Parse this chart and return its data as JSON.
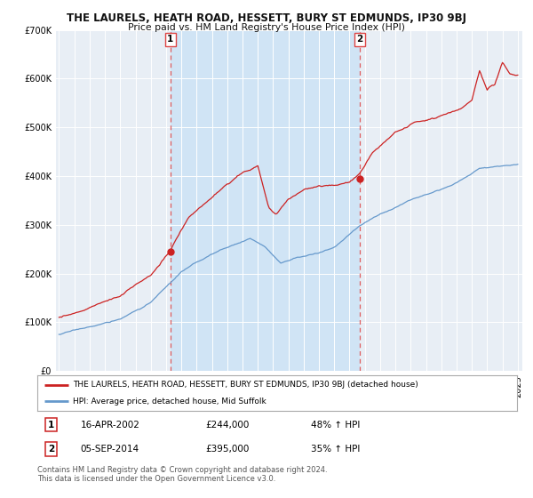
{
  "title": "THE LAURELS, HEATH ROAD, HESSETT, BURY ST EDMUNDS, IP30 9BJ",
  "subtitle": "Price paid vs. HM Land Registry's House Price Index (HPI)",
  "hpi_color": "#6699cc",
  "price_color": "#cc2222",
  "vline_color": "#dd4444",
  "legend_line1": "THE LAURELS, HEATH ROAD, HESSETT, BURY ST EDMUNDS, IP30 9BJ (detached house)",
  "legend_line2": "HPI: Average price, detached house, Mid Suffolk",
  "footer": "Contains HM Land Registry data © Crown copyright and database right 2024.\nThis data is licensed under the Open Government Licence v3.0.",
  "ylim": [
    0,
    700000
  ],
  "yticks": [
    0,
    100000,
    200000,
    300000,
    400000,
    500000,
    600000,
    700000
  ],
  "bg_color": "#ffffff",
  "plot_bg_color": "#e8eef5",
  "shade_color": "#d0e4f5",
  "grid_color": "#ffffff",
  "xstart": 1995,
  "xend": 2025,
  "transaction1_year": 2002.29,
  "transaction1_price": 244000,
  "transaction2_year": 2014.67,
  "transaction2_price": 395000,
  "seed": 17
}
